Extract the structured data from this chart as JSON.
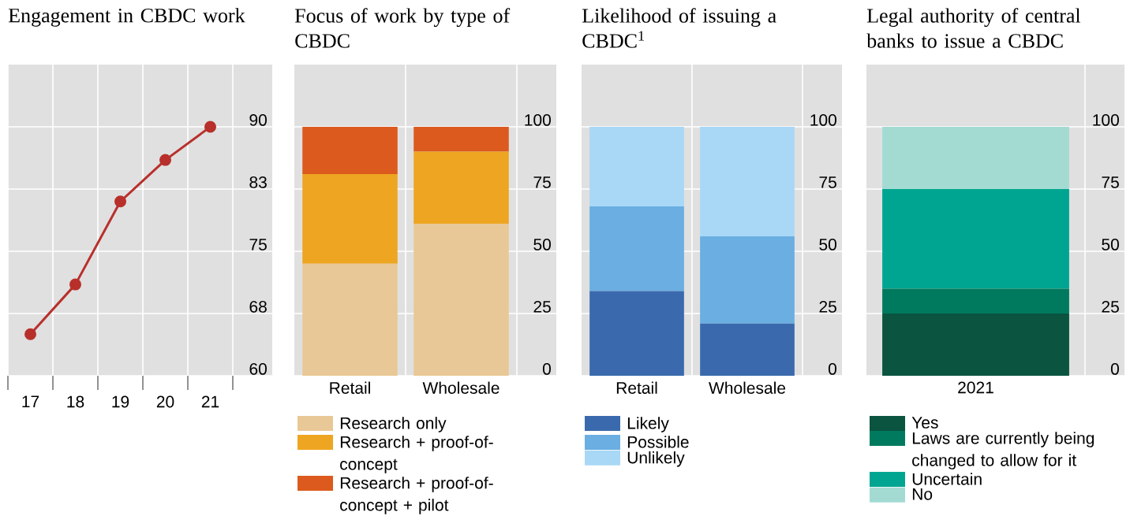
{
  "chart_data": [
    {
      "type": "line",
      "title": "Engagement in CBDC work",
      "categories": [
        "17",
        "18",
        "19",
        "20",
        "21"
      ],
      "values": [
        65,
        71,
        81,
        86,
        90
      ],
      "color": "#b8302b",
      "marker": "circle",
      "ylim": [
        60,
        97.5
      ],
      "yticks": [
        60,
        {
          "value": 67.5,
          "label": "68"
        },
        75,
        {
          "value": 82.5,
          "label": "83"
        },
        90
      ],
      "grid": true
    },
    {
      "type": "bar",
      "title": "Focus of work by type of CBDC",
      "categories": [
        "Retail",
        "Wholesale"
      ],
      "stacked": true,
      "ylim": [
        0,
        125
      ],
      "yticks": [
        0,
        25,
        50,
        75,
        100
      ],
      "grid": true,
      "legend": "bottom",
      "series": [
        {
          "name": "Research only",
          "color": "#e8c896",
          "values": [
            45,
            61
          ]
        },
        {
          "name": "Research + proof-of-concept",
          "color": "#eea521",
          "values": [
            36,
            29
          ]
        },
        {
          "name": "Research + proof-of-concept + pilot",
          "color": "#dc5a1e",
          "values": [
            19,
            10
          ]
        }
      ]
    },
    {
      "type": "bar",
      "title": "Likelihood of issuing a CBDC$^{1}$",
      "categories": [
        "Retail",
        "Wholesale"
      ],
      "stacked": true,
      "ylim": [
        0,
        125
      ],
      "yticks": [
        0,
        25,
        50,
        75,
        100
      ],
      "grid": true,
      "legend": "bottom",
      "series": [
        {
          "name": "Likely",
          "color": "#3a6aad",
          "values": [
            34,
            21
          ]
        },
        {
          "name": "Possible",
          "color": "#6aaee2",
          "values": [
            34,
            35
          ]
        },
        {
          "name": "Unlikely",
          "color": "#a9d8f6",
          "values": [
            32,
            44
          ]
        }
      ]
    },
    {
      "type": "bar",
      "title": "Legal authority of central banks to issue a CBDC",
      "categories": [
        "2021"
      ],
      "stacked": true,
      "ylim": [
        0,
        125
      ],
      "yticks": [
        0,
        25,
        50,
        75,
        100
      ],
      "grid": true,
      "legend": "bottom",
      "series": [
        {
          "name": "Yes",
          "color": "#0a5440",
          "values": [
            25
          ]
        },
        {
          "name": "Laws are currently being changed to allow for it",
          "color": "#007a5e",
          "values": [
            10
          ]
        },
        {
          "name": "Uncertain",
          "color": "#00a591",
          "values": [
            40
          ]
        },
        {
          "name": "No",
          "color": "#a3dbd3",
          "values": [
            25
          ]
        }
      ]
    }
  ]
}
